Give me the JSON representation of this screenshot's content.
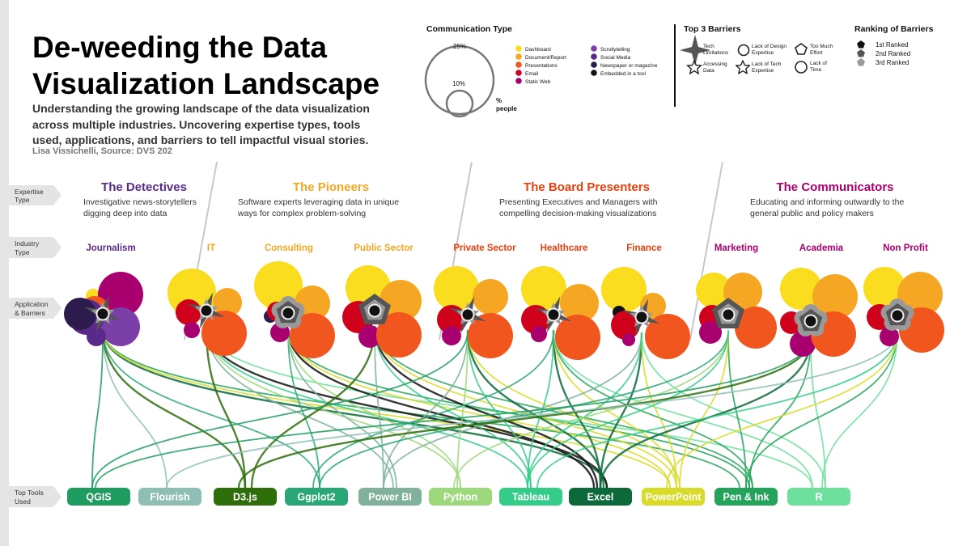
{
  "header": {
    "title_line1": "De-weeding the Data",
    "title_line2": "Visualization Landscape",
    "subtitle": "Understanding the growing landscape of the data visualization across multiple industries. Uncovering expertise types, tools used, applications, and barriers to tell impactful visual stories.",
    "source": "Lisa Vissichelli, Source: DVS 202"
  },
  "row_labels": {
    "expertise": [
      "Expertise",
      "Type"
    ],
    "industry": [
      "Industry",
      "Type"
    ],
    "application": [
      "Application",
      "& Barriers"
    ],
    "tools": [
      "Top Tools",
      "Used"
    ]
  },
  "legend": {
    "communication": {
      "title": "Communication Type",
      "size_large": "25%",
      "size_small": "10%",
      "size_unit_line1": "%",
      "size_unit_line2": "people",
      "items": [
        {
          "label": "Dashboard",
          "color": "#f9dd1e"
        },
        {
          "label": "Document/Report",
          "color": "#f5a623"
        },
        {
          "label": "Presentations",
          "color": "#f1561e"
        },
        {
          "label": "Email",
          "color": "#d0021b"
        },
        {
          "label": "Static Web",
          "color": "#a8006e"
        },
        {
          "label": "Scrollytelling",
          "color": "#7b3fa8"
        },
        {
          "label": "Social Media",
          "color": "#5a2a8a"
        },
        {
          "label": "Newspaper or magazine",
          "color": "#2d1b4e"
        },
        {
          "label": "Embedded in a tool",
          "color": "#111111"
        }
      ]
    },
    "barriers": {
      "title": "Top 3 Barriers",
      "items": [
        {
          "label": [
            "Tech",
            "Limitations"
          ],
          "icon": "star-4"
        },
        {
          "label": [
            "Lack of Design",
            "Expertise"
          ],
          "icon": "flower-5"
        },
        {
          "label": [
            "Too Much",
            "Effort"
          ],
          "icon": "pentagon"
        },
        {
          "label": [
            "Accessing",
            "Data"
          ],
          "icon": "star-5"
        },
        {
          "label": [
            "Lack of Tech",
            "Expertise"
          ],
          "icon": "star-5-soft"
        },
        {
          "label": [
            "Lack of",
            "Time"
          ],
          "icon": "circle"
        }
      ]
    },
    "ranking": {
      "title": "Ranking of Barriers",
      "items": [
        {
          "label": "1st Ranked",
          "color": "#111111"
        },
        {
          "label": "2nd Ranked",
          "color": "#555555"
        },
        {
          "label": "3rd Ranked",
          "color": "#9a9a9a"
        }
      ]
    }
  },
  "segments": [
    {
      "title": "The Detectives",
      "color": "#5a2a8a",
      "desc": [
        "Investigative news-storytellers",
        "digging deep into data"
      ]
    },
    {
      "title": "The Pioneers",
      "color": "#f5a623",
      "desc": [
        "Software experts leveraging data in unique",
        "ways for complex problem-solving"
      ]
    },
    {
      "title": "The Board Presenters",
      "color": "#e8400c",
      "desc": [
        "Presenting Executives and Managers with",
        "compelling decision-making visualizations"
      ]
    },
    {
      "title": "The Communicators",
      "color": "#a8006e",
      "desc": [
        "Educating and informing outwardly to the",
        "general public and policy makers"
      ]
    }
  ],
  "industries": [
    {
      "name": "Journalism",
      "color": "#5a2a8a"
    },
    {
      "name": "IT",
      "color": "#f5a623"
    },
    {
      "name": "Consulting",
      "color": "#f5a623"
    },
    {
      "name": "Public Sector",
      "color": "#f5a623"
    },
    {
      "name": "Private Sector",
      "color": "#e8400c"
    },
    {
      "name": "Healthcare",
      "color": "#e8400c"
    },
    {
      "name": "Finance",
      "color": "#e8400c"
    },
    {
      "name": "Marketing",
      "color": "#a8006e"
    },
    {
      "name": "Academia",
      "color": "#a8006e"
    },
    {
      "name": "Non Profit",
      "color": "#a8006e"
    }
  ],
  "tools": [
    {
      "name": "QGIS",
      "color": "#1f9c5f"
    },
    {
      "name": "Flourish",
      "color": "#8fbfb4"
    },
    {
      "name": "D3.js",
      "color": "#2d6e0a"
    },
    {
      "name": "Ggplot2",
      "color": "#2aa776"
    },
    {
      "name": "Power BI",
      "color": "#7fb19c"
    },
    {
      "name": "Python",
      "color": "#9ed87c"
    },
    {
      "name": "Tableau",
      "color": "#33cc88"
    },
    {
      "name": "Excel",
      "color": "#0c6a3a"
    },
    {
      "name": "PowerPoint",
      "color": "#d8dc28"
    },
    {
      "name": "Pen & Ink",
      "color": "#23a45a"
    },
    {
      "name": "R",
      "color": "#6ee09e"
    }
  ]
}
